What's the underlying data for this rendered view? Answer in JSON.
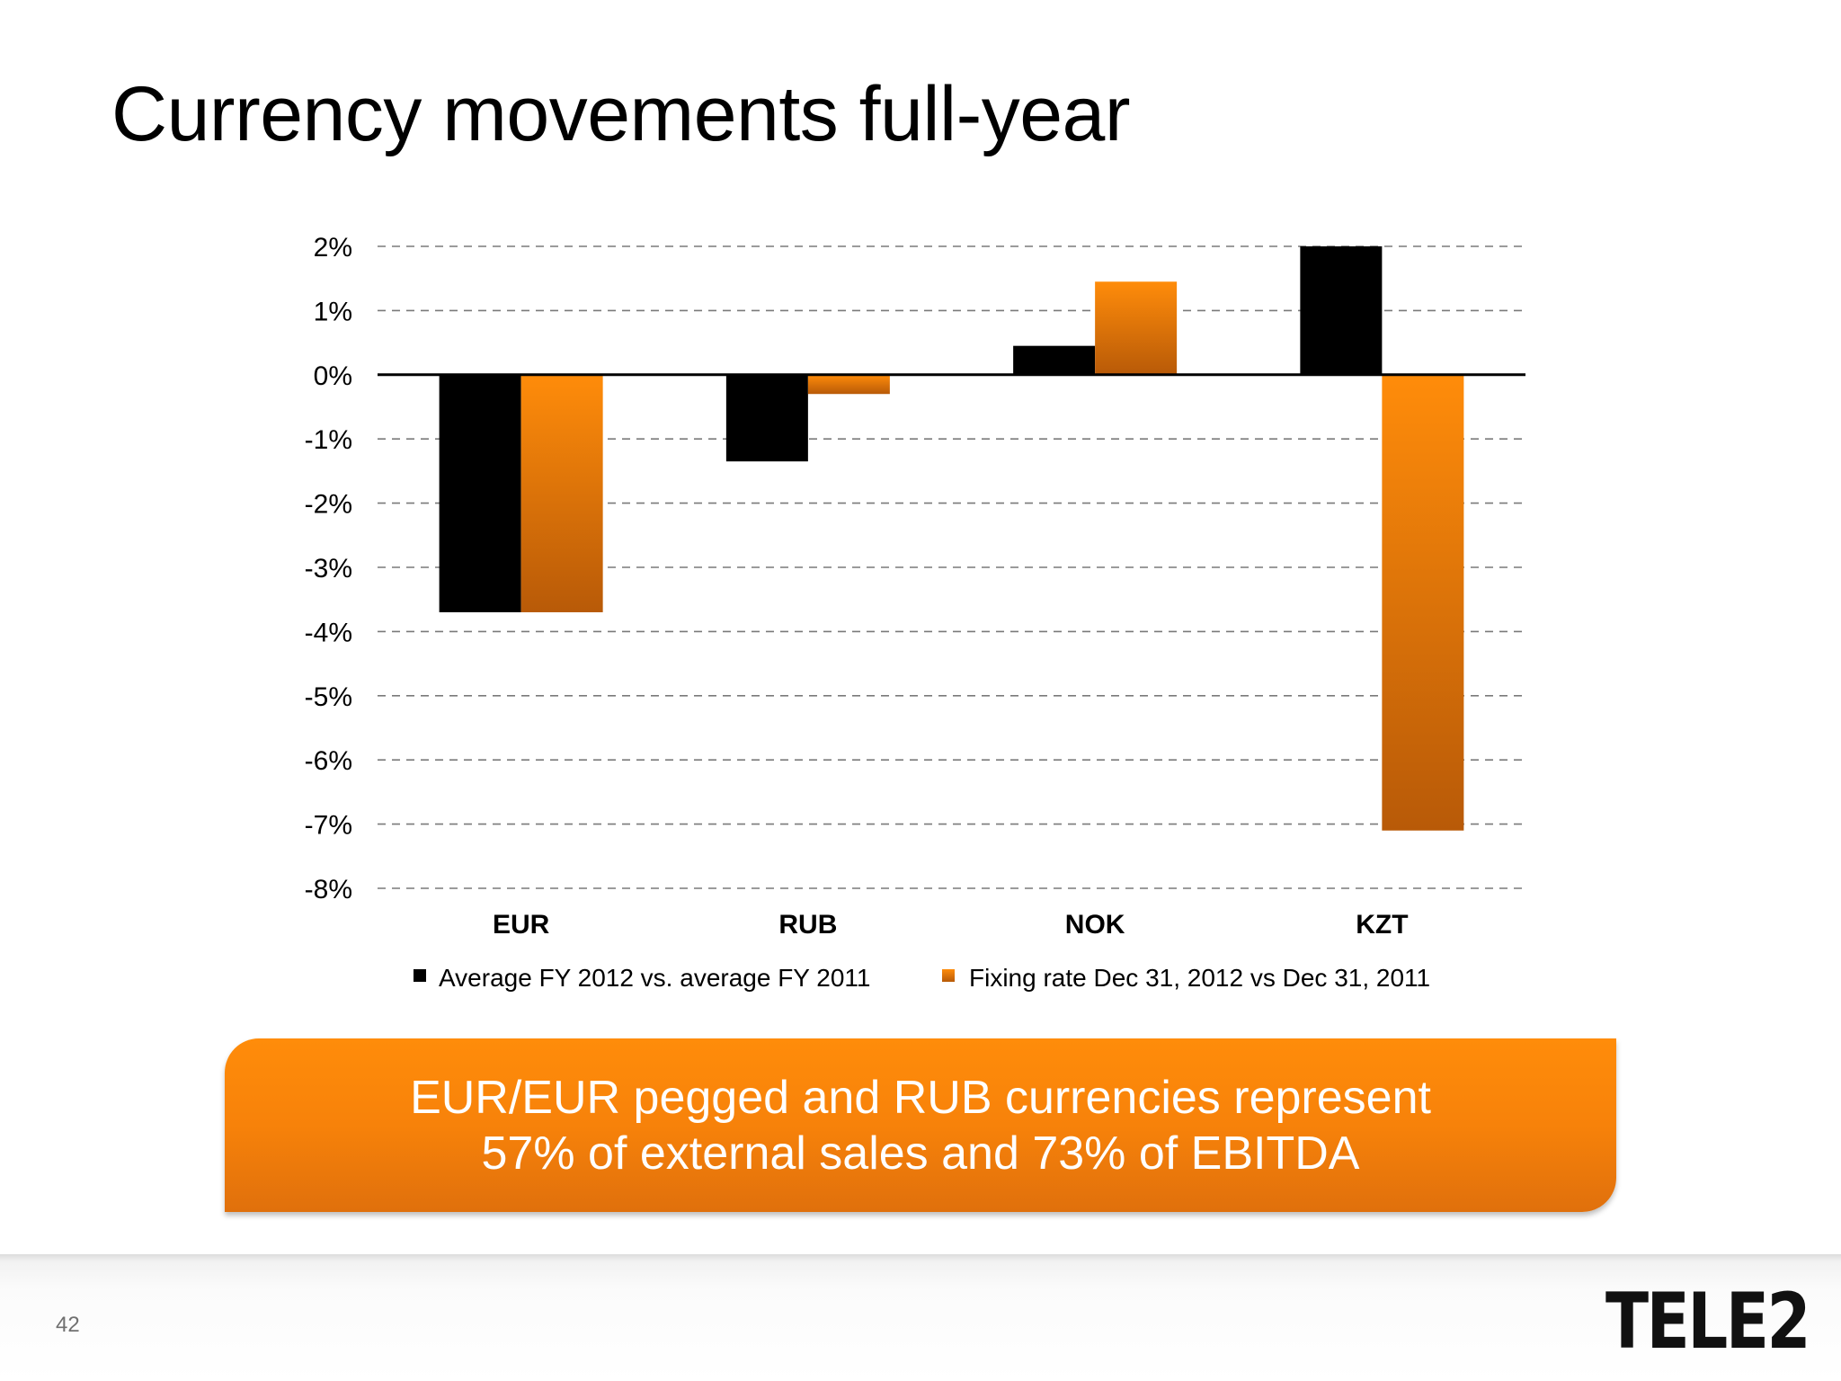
{
  "slide": {
    "title": "Currency movements full-year",
    "page_number": "42",
    "logo_text": "TELE2"
  },
  "callout": {
    "line1": "EUR/EUR pegged and RUB currencies represent",
    "line2": "57% of external sales and 73% of EBITDA",
    "color": "#f7820a"
  },
  "chart_data": {
    "type": "bar",
    "title": "",
    "xlabel": "",
    "ylabel": "",
    "categories": [
      "EUR",
      "RUB",
      "NOK",
      "KZT"
    ],
    "series": [
      {
        "name": "Average FY 2012 vs. average FY 2011",
        "values": [
          -3.7,
          -1.35,
          0.45,
          2.0
        ],
        "color": "#000000"
      },
      {
        "name": "Fixing rate Dec 31, 2012 vs Dec 31, 2011",
        "values": [
          -3.7,
          -0.3,
          1.45,
          -7.1
        ],
        "color": "#f7820a"
      }
    ],
    "ylim": [
      -8,
      2
    ],
    "yticks": [
      2,
      1,
      0,
      -1,
      -2,
      -3,
      -4,
      -5,
      -6,
      -7,
      -8
    ],
    "ytick_labels": [
      "2%",
      "1%",
      "0%",
      "-1%",
      "-2%",
      "-3%",
      "-4%",
      "-5%",
      "-6%",
      "-7%",
      "-8%"
    ],
    "grid": true,
    "grid_style": "dashed",
    "legend_position": "bottom"
  }
}
